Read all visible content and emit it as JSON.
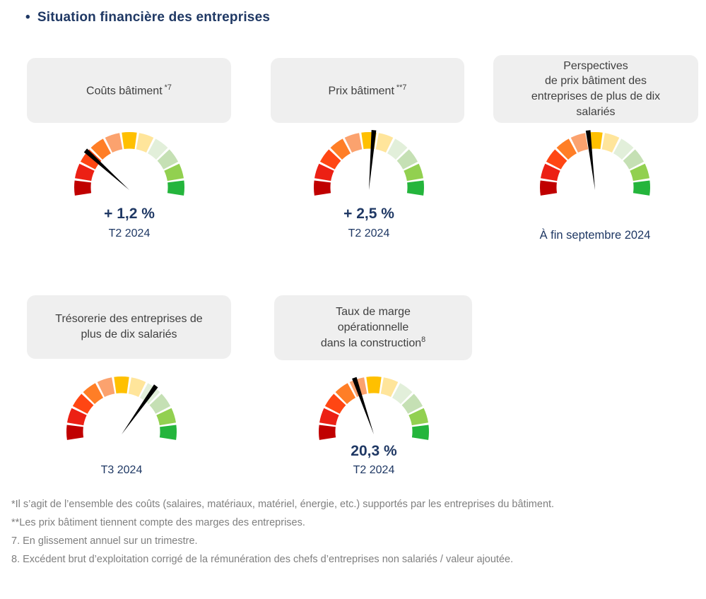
{
  "page": {
    "bullet": "•",
    "title": "Situation financière des entreprises"
  },
  "colors": {
    "title_navy": "#1F3864",
    "card_bg": "#EFEFEF",
    "card_text": "#3F3F3F",
    "footnote_gray": "#7F7F7F",
    "needle": "#000000"
  },
  "gauge_style": {
    "palette_left_to_right": [
      "#C00000",
      "#EC2014",
      "#FF4613",
      "#FF7E26",
      "#FBA26E",
      "#FFC000",
      "#FFE59B",
      "#E2EFDA",
      "#C5E0B4",
      "#92D050",
      "#24B53C"
    ],
    "scale_meaning": "red (left / unfavorable) to green (right / favorable)",
    "arc_start_deg": 190,
    "arc_end_deg": -10,
    "segments": 11,
    "angle_convention": "degrees counterclockwise from east; 0 = right, 90 = up, 180 = left"
  },
  "chart_data": [
    {
      "type": "gauge",
      "name": "couts-batiment",
      "title_lines": [
        "Coûts bâtiment"
      ],
      "title_sup": " *7",
      "value_label": "+ 1,2 %",
      "period_label": "T2 2024",
      "needle_angle_deg": 140
    },
    {
      "type": "gauge",
      "name": "prix-batiment",
      "title_lines": [
        "Prix bâtiment"
      ],
      "title_sup": " **7",
      "value_label": "+ 2,5 %",
      "period_label": "T2 2024",
      "needle_angle_deg": 85
    },
    {
      "type": "gauge",
      "name": "perspectives-prix-batiment",
      "title_lines": [
        "Perspectives",
        "de prix bâtiment des",
        "entreprises de plus de dix",
        "salariés"
      ],
      "title_sup": "",
      "value_label": "",
      "period_label": "À fin septembre 2024",
      "needle_angle_deg": 97
    },
    {
      "type": "gauge",
      "name": "tresorerie",
      "title_lines": [
        "Trésorerie des entreprises de",
        "plus de dix salariés"
      ],
      "title_sup": "",
      "value_label": "",
      "period_label": "T3 2024",
      "needle_angle_deg": 53
    },
    {
      "type": "gauge",
      "name": "taux-de-marge-operationnelle",
      "title_lines": [
        "Taux de marge",
        "opérationnelle",
        "dans la construction"
      ],
      "title_sup": "8",
      "value_label": "20,3 %",
      "period_label": "T2 2024",
      "needle_angle_deg": 110
    }
  ],
  "footnotes": [
    "*Il s’agit de l’ensemble des coûts (salaires, matériaux, matériel, énergie, etc.) supportés par les entreprises du bâtiment.",
    "**Les prix bâtiment tiennent compte des marges des entreprises.",
    "7. En glissement annuel sur un trimestre.",
    "8. Excédent brut d’exploitation corrigé de la rémunération des chefs d’entreprises non salariés / valeur ajoutée."
  ]
}
